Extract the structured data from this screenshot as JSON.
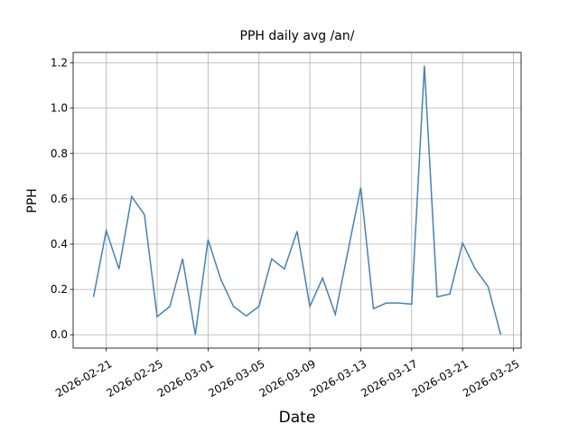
{
  "chart_data": {
    "type": "line",
    "title": "PPH daily avg /an/",
    "x_label": "Date",
    "y_label": "PPH",
    "x": [
      "2026-02-20",
      "2026-02-21",
      "2026-02-22",
      "2026-02-23",
      "2026-02-24",
      "2026-02-25",
      "2026-02-26",
      "2026-02-27",
      "2026-02-28",
      "2026-03-01",
      "2026-03-02",
      "2026-03-03",
      "2026-03-04",
      "2026-03-05",
      "2026-03-06",
      "2026-03-07",
      "2026-03-08",
      "2026-03-09",
      "2026-03-10",
      "2026-03-11",
      "2026-03-12",
      "2026-03-13",
      "2026-03-14",
      "2026-03-15",
      "2026-03-16",
      "2026-03-17",
      "2026-03-18",
      "2026-03-19",
      "2026-03-20",
      "2026-03-21",
      "2026-03-22",
      "2026-03-23",
      "2026-03-24"
    ],
    "series": [
      {
        "color": "#4682b4",
        "values": [
          0.167,
          0.46,
          0.29,
          0.61,
          0.53,
          0.08,
          0.125,
          0.335,
          0.0,
          0.42,
          0.245,
          0.125,
          0.083,
          0.125,
          0.335,
          0.29,
          0.457,
          0.125,
          0.25,
          0.09,
          0.37,
          0.65,
          0.115,
          0.14,
          0.14,
          0.135,
          1.187,
          0.167,
          0.18,
          0.405,
          0.29,
          0.213,
          0.0
        ]
      }
    ],
    "xlim": [
      "2026-02-18T09:36:00Z",
      "2026-03-25T14:24:00Z"
    ],
    "xticks": [
      "2026-02-21",
      "2026-02-25",
      "2026-03-01",
      "2026-03-05",
      "2026-03-09",
      "2026-03-13",
      "2026-03-17",
      "2026-03-21",
      "2026-03-25"
    ],
    "ylim": [
      -0.059,
      1.246
    ],
    "yticks": [
      {
        "value": 0,
        "label": "0.0"
      },
      {
        "value": 0.2,
        "label": "0.2"
      },
      {
        "value": 0.4,
        "label": "0.4"
      },
      {
        "value": 0.6,
        "label": "0.6"
      },
      {
        "value": 0.8,
        "label": "0.8"
      },
      {
        "value": 1,
        "label": "1.0"
      },
      {
        "value": 1.2,
        "label": "1.2"
      }
    ],
    "grid": true
  }
}
